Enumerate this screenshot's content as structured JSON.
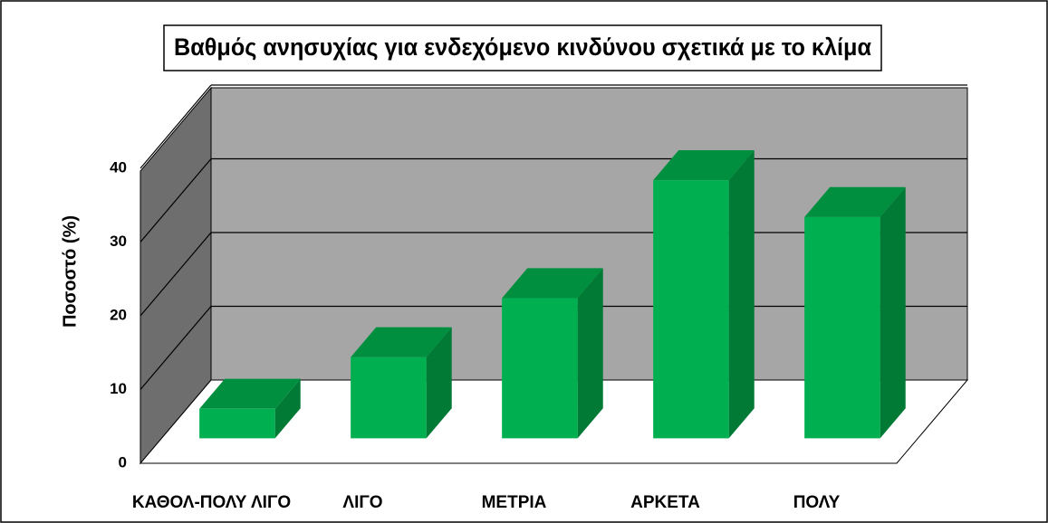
{
  "chart_data": {
    "type": "bar3d",
    "title": "Βαθμός ανησυχίας για ενδεχόμενο κινδύνου σχετικά με το κλίμα",
    "y_label": "Ποσοστό (%)",
    "categories": [
      "ΚΑΘΟΛ-ΠΟΛΥ ΛΙΓΟ",
      "ΛΙΓΟ",
      "ΜΕΤΡΙΑ",
      "ΑΡΚΕΤΑ",
      "ΠΟΛΥ"
    ],
    "values": [
      4,
      11,
      19,
      35,
      30
    ],
    "color": "#00b050",
    "ylim": [
      0,
      40
    ],
    "yticks": [
      0,
      10,
      20,
      30,
      40
    ],
    "grid": true
  }
}
